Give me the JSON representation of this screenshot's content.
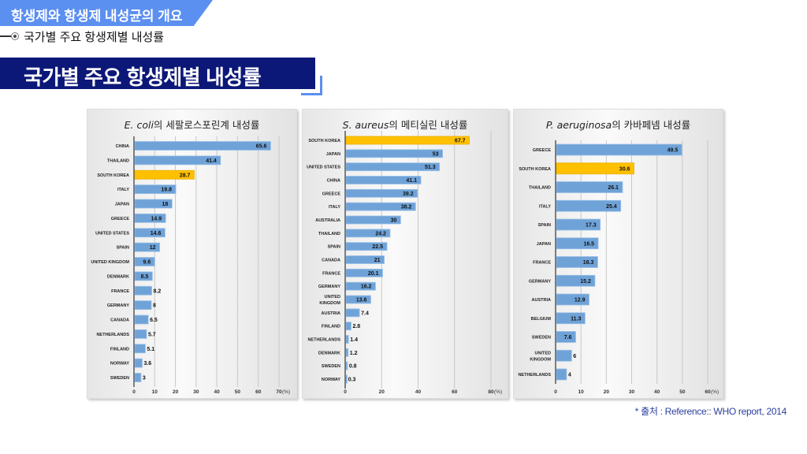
{
  "header": {
    "section": "항생제와 항생제 내성균의 개요",
    "subtitle": "국가별 주요 항생제별 내성률",
    "title": "국가별 주요 항생제별 내성률"
  },
  "footnote": "* 출처 : Reference:: WHO report, 2014",
  "colors": {
    "bar": "#6fa3d8",
    "highlight": "#ffc000",
    "navy": "#0c1878",
    "accent": "#5b8ff0"
  },
  "chart_data": [
    {
      "type": "bar",
      "orientation": "horizontal",
      "title_italic": "E. coli",
      "title_rest": "의 세팔로스포린계 내성률",
      "categories": [
        "CHINA",
        "THAILAND",
        "SOUTH KOREA",
        "ITALY",
        "JAPAN",
        "GREECE",
        "UNITED STATES",
        "SPAIN",
        "UNITED KINGDOM",
        "DENMARK",
        "FRANCE",
        "GERMANY",
        "CANADA",
        "NETHERLANDS",
        "FINLAND",
        "NORWAY",
        "SWEDEN"
      ],
      "values": [
        65.6,
        41.4,
        28.7,
        19.8,
        18,
        14.9,
        14.6,
        12,
        9.6,
        8.5,
        8.2,
        8,
        6.5,
        5.7,
        5.1,
        3.6,
        3
      ],
      "highlight": "SOUTH KOREA",
      "xlim": [
        0,
        70
      ],
      "xticks": [
        0,
        10,
        20,
        30,
        40,
        50,
        60,
        70
      ],
      "xunit": "(%)",
      "grid": true
    },
    {
      "type": "bar",
      "orientation": "horizontal",
      "title_italic": "S. aureus",
      "title_rest": "의 메티실린 내성률",
      "categories": [
        "SOUTH KOREA",
        "JAPAN",
        "UNITED STATES",
        "CHINA",
        "GREECE",
        "ITALY",
        "AUSTRALIA",
        "THAILAND",
        "SPAIN",
        "CANADA",
        "FRANCE",
        "GERMANY",
        "UNITED KINGDOM",
        "AUSTRIA",
        "FINLAND",
        "NETHERLANDS",
        "DENMARK",
        "SWEDEN",
        "NORWAY"
      ],
      "values": [
        67.7,
        53,
        51.3,
        41.1,
        39.2,
        38.2,
        30,
        24.2,
        22.5,
        21,
        20.1,
        16.2,
        13.6,
        7.4,
        2.8,
        1.4,
        1.2,
        0.8,
        0.3
      ],
      "highlight": "SOUTH KOREA",
      "xlim": [
        0,
        80
      ],
      "xticks": [
        0,
        20,
        40,
        60,
        80
      ],
      "xunit": "(%)",
      "grid": true
    },
    {
      "type": "bar",
      "orientation": "horizontal",
      "title_italic": "P. aeruginosa",
      "title_rest": "의 카바페넴 내성률",
      "categories": [
        "GREECE",
        "SOUTH KOREA",
        "THAILAND",
        "ITALY",
        "SPAIN",
        "JAPAN",
        "FRANCE",
        "GERMANY",
        "AUSTRIA",
        "BELGIUM",
        "SWEDEN",
        "UNITED KINGDOM",
        "NETHERLANDS"
      ],
      "values": [
        49.5,
        30.6,
        26.1,
        25.4,
        17.3,
        16.5,
        16.3,
        15.2,
        12.9,
        11.3,
        7.6,
        6,
        4
      ],
      "highlight": "SOUTH KOREA",
      "xlim": [
        0,
        60
      ],
      "xticks": [
        0,
        10,
        20,
        30,
        40,
        50,
        60
      ],
      "xunit": "(%)",
      "grid": true
    }
  ]
}
